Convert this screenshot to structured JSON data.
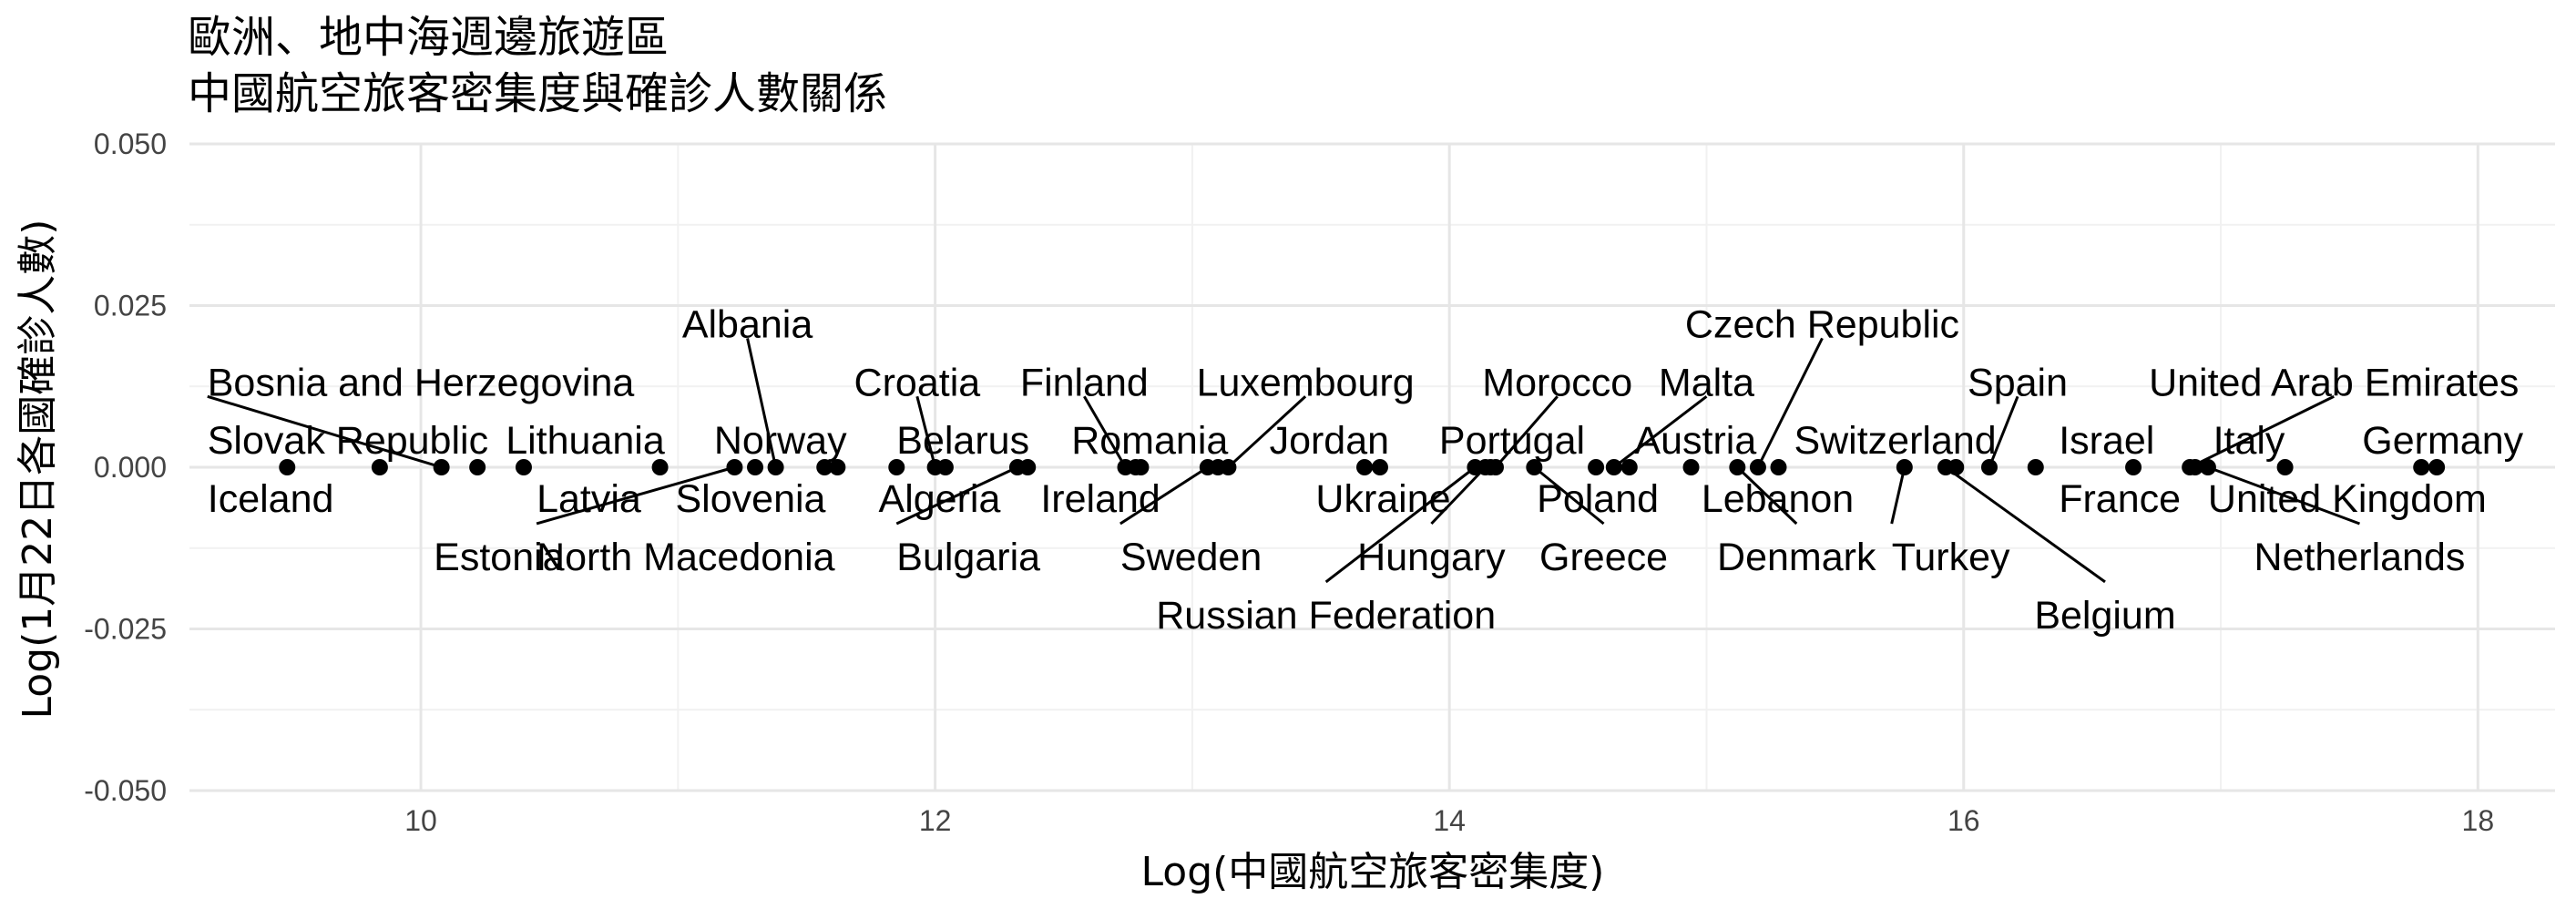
{
  "chart_data": {
    "type": "scatter",
    "title": [
      "歐洲、地中海週邊旅遊區",
      "中國航空旅客密集度與確診人數關係"
    ],
    "xlabel": "Log(中國航空旅客密集度)",
    "ylabel": "Log(1月22日各國確診人數)",
    "xlim": [
      9.1,
      18.3
    ],
    "ylim": [
      -0.05,
      0.05
    ],
    "xticks": [
      10,
      12,
      14,
      16,
      18
    ],
    "yticks": [
      -0.05,
      -0.025,
      0,
      0.025,
      0.05
    ],
    "xtick_labels": [
      "10",
      "12",
      "14",
      "16",
      "18"
    ],
    "ytick_labels": [
      "-0.050",
      "-0.025",
      "0.000",
      "0.025",
      "0.050"
    ],
    "grid": true,
    "points": [
      {
        "x": 9.48,
        "y": 0,
        "label": "Iceland",
        "lx": 9.17,
        "ly": -0.0048,
        "anchor": "start",
        "leader": false
      },
      {
        "x": 9.84,
        "y": 0,
        "label": "Slovak Republic",
        "lx": 9.17,
        "ly": 0.0042,
        "anchor": "start",
        "leader": false
      },
      {
        "x": 10.08,
        "y": 0,
        "label": "Bosnia and Herzegovina",
        "lx": 9.17,
        "ly": 0.0132,
        "anchor": "start",
        "leader": true
      },
      {
        "x": 10.22,
        "y": 0,
        "label": "Estonia",
        "lx": 10.05,
        "ly": -0.0138,
        "anchor": "start",
        "leader": false
      },
      {
        "x": 10.4,
        "y": 0,
        "label": "Lithuania",
        "lx": 10.33,
        "ly": 0.0042,
        "anchor": "start",
        "leader": false
      },
      {
        "x": 10.93,
        "y": 0,
        "label": "Latvia",
        "lx": 10.45,
        "ly": -0.0048,
        "anchor": "start",
        "leader": false
      },
      {
        "x": 11.22,
        "y": 0,
        "label": "North Macedonia",
        "lx": 10.45,
        "ly": -0.0138,
        "anchor": "start",
        "leader": true
      },
      {
        "x": 11.38,
        "y": 0,
        "label": "Albania",
        "lx": 11.27,
        "ly": 0.0222,
        "anchor": "middle",
        "leader": true
      },
      {
        "x": 11.3,
        "y": 0,
        "label": "Slovenia",
        "lx": 10.99,
        "ly": -0.0048,
        "anchor": "start",
        "leader": false
      },
      {
        "x": 11.57,
        "y": 0,
        "label": "Norway",
        "lx": 11.14,
        "ly": 0.0042,
        "anchor": "start",
        "leader": false
      },
      {
        "x": 11.62,
        "y": 0,
        "label": "",
        "lx": 0,
        "ly": 0,
        "anchor": "start",
        "leader": false
      },
      {
        "x": 11.85,
        "y": 0,
        "label": "Algeria",
        "lx": 11.78,
        "ly": -0.0048,
        "anchor": "start",
        "leader": false
      },
      {
        "x": 12.0,
        "y": 0,
        "label": "Croatia",
        "lx": 11.93,
        "ly": 0.0132,
        "anchor": "middle",
        "leader": true
      },
      {
        "x": 12.04,
        "y": 0,
        "label": "Belarus",
        "lx": 11.85,
        "ly": 0.0042,
        "anchor": "start",
        "leader": false
      },
      {
        "x": 12.32,
        "y": 0,
        "label": "Bulgaria",
        "lx": 11.85,
        "ly": -0.0138,
        "anchor": "start",
        "leader": true
      },
      {
        "x": 12.36,
        "y": 0,
        "label": "",
        "lx": 0,
        "ly": 0,
        "anchor": "start",
        "leader": false
      },
      {
        "x": 12.74,
        "y": 0,
        "label": "Finland",
        "lx": 12.58,
        "ly": 0.0132,
        "anchor": "middle",
        "leader": true
      },
      {
        "x": 12.78,
        "y": 0,
        "label": "Ireland",
        "lx": 12.41,
        "ly": -0.0048,
        "anchor": "start",
        "leader": false
      },
      {
        "x": 12.8,
        "y": 0,
        "label": "Romania",
        "lx": 12.53,
        "ly": 0.0042,
        "anchor": "start",
        "leader": false
      },
      {
        "x": 13.06,
        "y": 0,
        "label": "Sweden",
        "lx": 12.72,
        "ly": -0.0138,
        "anchor": "start",
        "leader": true
      },
      {
        "x": 13.1,
        "y": 0,
        "label": "",
        "lx": 0,
        "ly": 0,
        "anchor": "start",
        "leader": false
      },
      {
        "x": 13.14,
        "y": 0,
        "label": "Luxembourg",
        "lx": 13.44,
        "ly": 0.0132,
        "anchor": "middle",
        "leader": true
      },
      {
        "x": 13.67,
        "y": 0,
        "label": "Jordan",
        "lx": 13.3,
        "ly": 0.0042,
        "anchor": "start",
        "leader": false
      },
      {
        "x": 13.73,
        "y": 0,
        "label": "Ukraine",
        "lx": 13.48,
        "ly": -0.0048,
        "anchor": "start",
        "leader": false
      },
      {
        "x": 14.1,
        "y": 0,
        "label": "Russian Federation",
        "lx": 13.52,
        "ly": -0.0228,
        "anchor": "middle",
        "leader": true
      },
      {
        "x": 14.14,
        "y": 0,
        "label": "Hungary",
        "lx": 13.93,
        "ly": -0.0138,
        "anchor": "middle",
        "leader": true
      },
      {
        "x": 14.18,
        "y": 0,
        "label": "Morocco",
        "lx": 14.42,
        "ly": 0.0132,
        "anchor": "middle",
        "leader": true
      },
      {
        "x": 14.16,
        "y": 0,
        "label": "Portugal",
        "lx": 13.96,
        "ly": 0.0042,
        "anchor": "start",
        "leader": false
      },
      {
        "x": 14.33,
        "y": 0,
        "label": "Greece",
        "lx": 14.6,
        "ly": -0.0138,
        "anchor": "middle",
        "leader": true
      },
      {
        "x": 14.57,
        "y": 0,
        "label": "Poland",
        "lx": 14.34,
        "ly": -0.0048,
        "anchor": "start",
        "leader": false
      },
      {
        "x": 14.64,
        "y": 0,
        "label": "Malta",
        "lx": 15.0,
        "ly": 0.0132,
        "anchor": "middle",
        "leader": true
      },
      {
        "x": 14.7,
        "y": 0,
        "label": "Austria",
        "lx": 14.72,
        "ly": 0.0042,
        "anchor": "start",
        "leader": false
      },
      {
        "x": 14.94,
        "y": 0,
        "label": "Lebanon",
        "lx": 14.98,
        "ly": -0.0048,
        "anchor": "start",
        "leader": false
      },
      {
        "x": 15.12,
        "y": 0,
        "label": "Denmark",
        "lx": 15.35,
        "ly": -0.0138,
        "anchor": "middle",
        "leader": true
      },
      {
        "x": 15.2,
        "y": 0,
        "label": "Czech Republic",
        "lx": 15.45,
        "ly": 0.0222,
        "anchor": "middle",
        "leader": true
      },
      {
        "x": 15.28,
        "y": 0,
        "label": "",
        "lx": 0,
        "ly": 0,
        "anchor": "start",
        "leader": false
      },
      {
        "x": 15.77,
        "y": 0,
        "label": "Turkey",
        "lx": 15.72,
        "ly": -0.0138,
        "anchor": "start",
        "leader": true
      },
      {
        "x": 15.93,
        "y": 0,
        "label": "Belgium",
        "lx": 16.55,
        "ly": -0.0228,
        "anchor": "middle",
        "leader": true
      },
      {
        "x": 15.97,
        "y": 0,
        "label": "Switzerland",
        "lx": 15.34,
        "ly": 0.0042,
        "anchor": "start",
        "leader": false
      },
      {
        "x": 16.1,
        "y": 0,
        "label": "Spain",
        "lx": 16.21,
        "ly": 0.0132,
        "anchor": "middle",
        "leader": true
      },
      {
        "x": 16.28,
        "y": 0,
        "label": "Israel",
        "lx": 16.37,
        "ly": 0.0042,
        "anchor": "start",
        "leader": false
      },
      {
        "x": 16.66,
        "y": 0,
        "label": "France",
        "lx": 16.37,
        "ly": -0.0048,
        "anchor": "start",
        "leader": false
      },
      {
        "x": 16.88,
        "y": 0,
        "label": "United Arab Emirates",
        "lx": 17.44,
        "ly": 0.0132,
        "anchor": "middle",
        "leader": true
      },
      {
        "x": 16.95,
        "y": 0,
        "label": "Netherlands",
        "lx": 17.54,
        "ly": -0.0138,
        "anchor": "middle",
        "leader": true
      },
      {
        "x": 16.9,
        "y": 0,
        "label": "Italy",
        "lx": 16.97,
        "ly": 0.0042,
        "anchor": "start",
        "leader": false
      },
      {
        "x": 17.25,
        "y": 0,
        "label": "United Kingdom",
        "lx": 16.95,
        "ly": -0.0048,
        "anchor": "start",
        "leader": false
      },
      {
        "x": 17.78,
        "y": 0,
        "label": "Germany",
        "lx": 17.55,
        "ly": 0.0042,
        "anchor": "start",
        "leader": false
      },
      {
        "x": 17.84,
        "y": 0,
        "label": "",
        "lx": 0,
        "ly": 0,
        "anchor": "start",
        "leader": false
      }
    ]
  }
}
